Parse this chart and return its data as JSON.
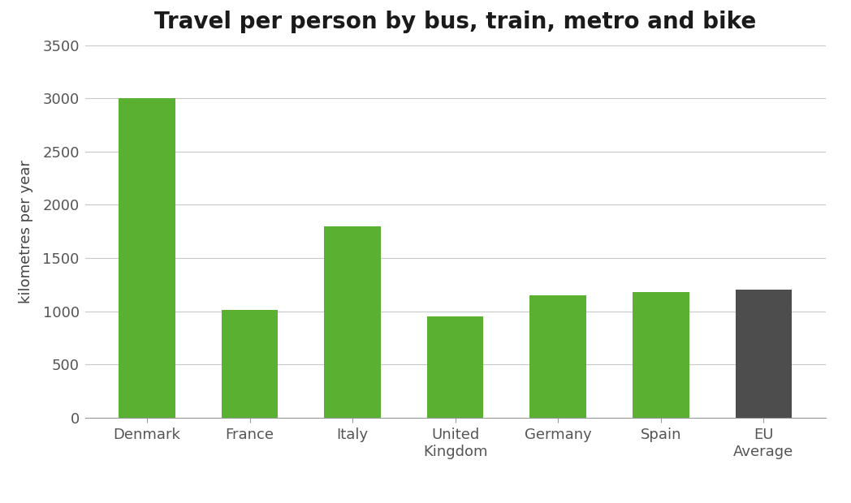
{
  "title": "Travel per person by bus, train, metro and bike",
  "categories": [
    "Denmark",
    "France",
    "Italy",
    "United\nKingdom",
    "Germany",
    "Spain",
    "EU\nAverage"
  ],
  "values": [
    3000,
    1010,
    1800,
    950,
    1150,
    1180,
    1200
  ],
  "bar_colors": [
    "#5ab031",
    "#5ab031",
    "#5ab031",
    "#5ab031",
    "#5ab031",
    "#5ab031",
    "#4d4d4d"
  ],
  "ylabel": "kilometres per year",
  "ylim": [
    0,
    3500
  ],
  "yticks": [
    0,
    500,
    1000,
    1500,
    2000,
    2500,
    3000,
    3500
  ],
  "background_color": "#ffffff",
  "grid_color": "#c8c8c8",
  "title_fontsize": 20,
  "label_fontsize": 13,
  "tick_fontsize": 13
}
